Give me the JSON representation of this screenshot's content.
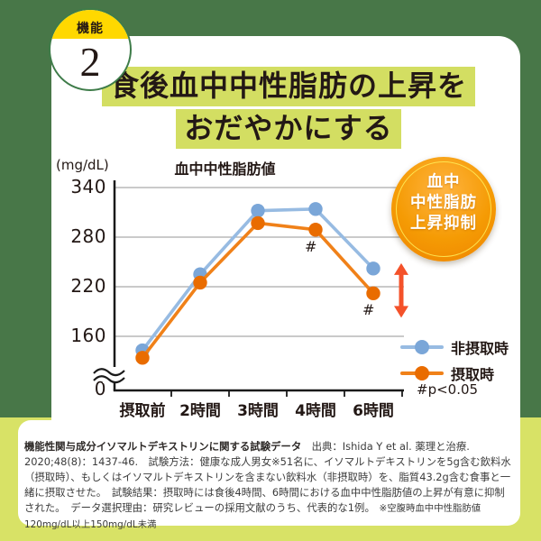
{
  "badge": {
    "top": "機能",
    "number": "2"
  },
  "title": {
    "line1": "食後血中中性脂肪の上昇を",
    "line2": "おだやかにする"
  },
  "sticker": {
    "line1": "血中",
    "line2": "中性脂肪",
    "line3": "上昇抑制"
  },
  "chart_data": {
    "type": "line",
    "title": "血中中性脂肪値",
    "unit_label": "(mg/dL)",
    "categories": [
      "摂取前",
      "2時間",
      "3時間",
      "4時間",
      "6時間"
    ],
    "series": [
      {
        "name": "非摂取時",
        "color": "#7aa6d8",
        "line_color": "#97bbe2",
        "values": [
          143,
          235,
          312,
          314,
          242
        ]
      },
      {
        "name": "摂取時",
        "color": "#e96c00",
        "line_color": "#f08119",
        "values": [
          134,
          225,
          297,
          289,
          212
        ]
      }
    ],
    "yticks": [
      0,
      160,
      220,
      280,
      340
    ],
    "ylim": [
      0,
      340
    ],
    "axis_break_between": [
      0,
      160
    ],
    "grid": true,
    "legend_position": "right",
    "annotations": [
      {
        "text": "#",
        "series_index": 1,
        "category_index": 3
      },
      {
        "text": "#",
        "series_index": 1,
        "category_index": 4
      }
    ],
    "significance_note": "#p<0.05",
    "gap_arrow": {
      "category_index": 4,
      "between_series": [
        0,
        1
      ]
    }
  },
  "footer": {
    "lead": "機能性関与成分イソマルトデキストリンに関する試験データ",
    "body": "　出典：Ishida Y et al. 薬理と治療. 2020;48(8)：1437-46.　試験方法：健康な成人男女※51名に、イソマルトデキストリンを5g含む飲料水（摂取時）、もしくはイソマルトデキストリンを含まない飲料水（非摂取時）を、脂質43.2g含む食事と一緒に摂取させた。　試験結果：摂取時には食後4時間、6時間における血中中性脂肪値の上昇が有意に抑制された。　データ選択理由：研究レビューの採用文献のうち、代表的な1例。",
    "note": "　※空腹時血中中性脂肪値120mg/dL以上150mg/dL未満"
  },
  "colors": {
    "bg_top": "#487748",
    "bg_bottom": "#d8e266",
    "title_highlight": "#d3de62",
    "badge_yellow": "#ffd800",
    "badge_ring": "#3e7c49",
    "sticker_orange": "#ee8200",
    "text_dark": "#231815",
    "arrow_red": "#f4522a",
    "grid_gray": "#ababab",
    "axis_black": "#1a1a1a"
  }
}
